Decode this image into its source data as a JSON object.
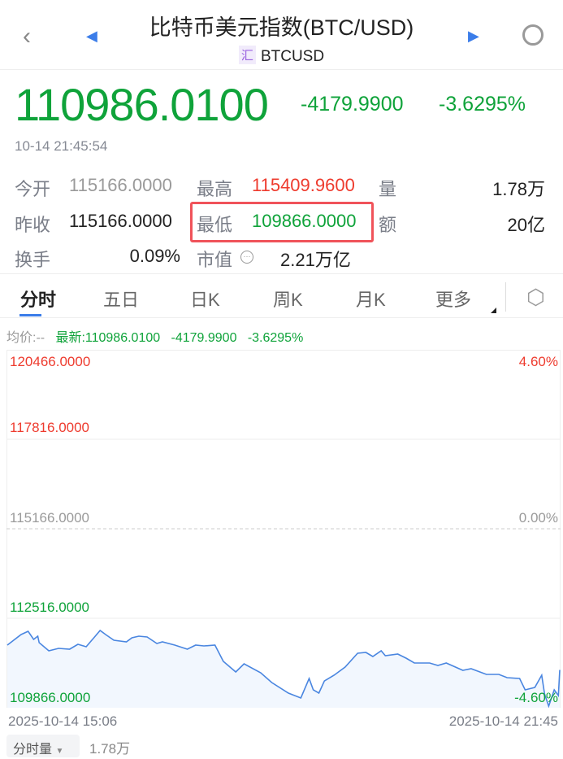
{
  "header": {
    "title": "比特币美元指数(BTC/USD)",
    "badge": "汇",
    "symbol": "BTCUSD"
  },
  "quote": {
    "price": "110986.0100",
    "change": "-4179.9900",
    "change_pct": "-3.6295%",
    "time": "10-14 21:45:54"
  },
  "stats": [
    {
      "label": "今开",
      "value": "115166.0000"
    },
    {
      "label": "最高",
      "value": "115409.9600"
    },
    {
      "label": "量",
      "value": "1.78万"
    },
    {
      "label": "昨收",
      "value": "115166.0000"
    },
    {
      "label": "最低",
      "value": "109866.0000"
    },
    {
      "label": "额",
      "value": "20亿"
    },
    {
      "label": "换手",
      "value": "0.09%"
    },
    {
      "label": "市值",
      "value": "2.21万亿"
    }
  ],
  "tabs": [
    "分时",
    "五日",
    "日K",
    "周K",
    "月K",
    "更多"
  ],
  "info": {
    "avg": "均价:--",
    "latest": "最新:110986.0100",
    "change": "-4179.9900",
    "pct": "-3.6295%"
  },
  "colors": {
    "up": "#ee3b2e",
    "down": "#0fa33a",
    "line": "#4a86e0",
    "tab_active": "#3b7de9"
  },
  "chart_data": {
    "type": "line",
    "y_labels_left": [
      "120466.0000",
      "117816.0000",
      "115166.0000",
      "112516.0000",
      "109866.0000"
    ],
    "y_labels_right": [
      "4.60%",
      "0.00%",
      "-4.60%"
    ],
    "ylim": [
      109866,
      120466
    ],
    "x_labels": [
      "2025-10-14 15:06",
      "2025-10-14 21:45"
    ],
    "x": [
      "15:06",
      "15:16",
      "15:21",
      "15:25",
      "15:28",
      "15:29",
      "15:36",
      "15:43",
      "15:51",
      "15:57",
      "16:03",
      "16:09",
      "16:13",
      "16:17",
      "16:23",
      "16:32",
      "16:36",
      "16:41",
      "16:47",
      "16:54",
      "16:58",
      "17:07",
      "17:16",
      "17:22",
      "17:28",
      "17:36",
      "17:42",
      "17:51",
      "17:57",
      "18:09",
      "18:17",
      "18:29",
      "18:38",
      "18:44",
      "18:47",
      "18:51",
      "18:55",
      "19:02",
      "19:10",
      "19:19",
      "19:25",
      "19:30",
      "19:36",
      "19:39",
      "19:48",
      "19:54",
      "20:00",
      "20:11",
      "20:17",
      "20:23",
      "20:35",
      "20:41",
      "20:52",
      "21:01",
      "21:07",
      "21:16",
      "21:20",
      "21:27",
      "21:32",
      "21:34",
      "21:37",
      "21:41",
      "21:44",
      "21:45"
    ],
    "y": [
      111721,
      112034,
      112131,
      111890,
      111986,
      111794,
      111553,
      111625,
      111601,
      111745,
      111673,
      111962,
      112155,
      112034,
      111866,
      111818,
      111938,
      111986,
      111962,
      111770,
      111818,
      111721,
      111601,
      111721,
      111697,
      111721,
      111240,
      110926,
      111167,
      110902,
      110613,
      110300,
      110156,
      110734,
      110396,
      110300,
      110661,
      110830,
      111071,
      111480,
      111505,
      111384,
      111553,
      111408,
      111456,
      111336,
      111191,
      111191,
      111119,
      111191,
      110975,
      111023,
      110854,
      110854,
      110758,
      110734,
      110396,
      110469,
      110830,
      110276,
      109915,
      110396,
      110228,
      110986
    ]
  },
  "volume": {
    "selector": "分时量",
    "value": "1.78万"
  }
}
